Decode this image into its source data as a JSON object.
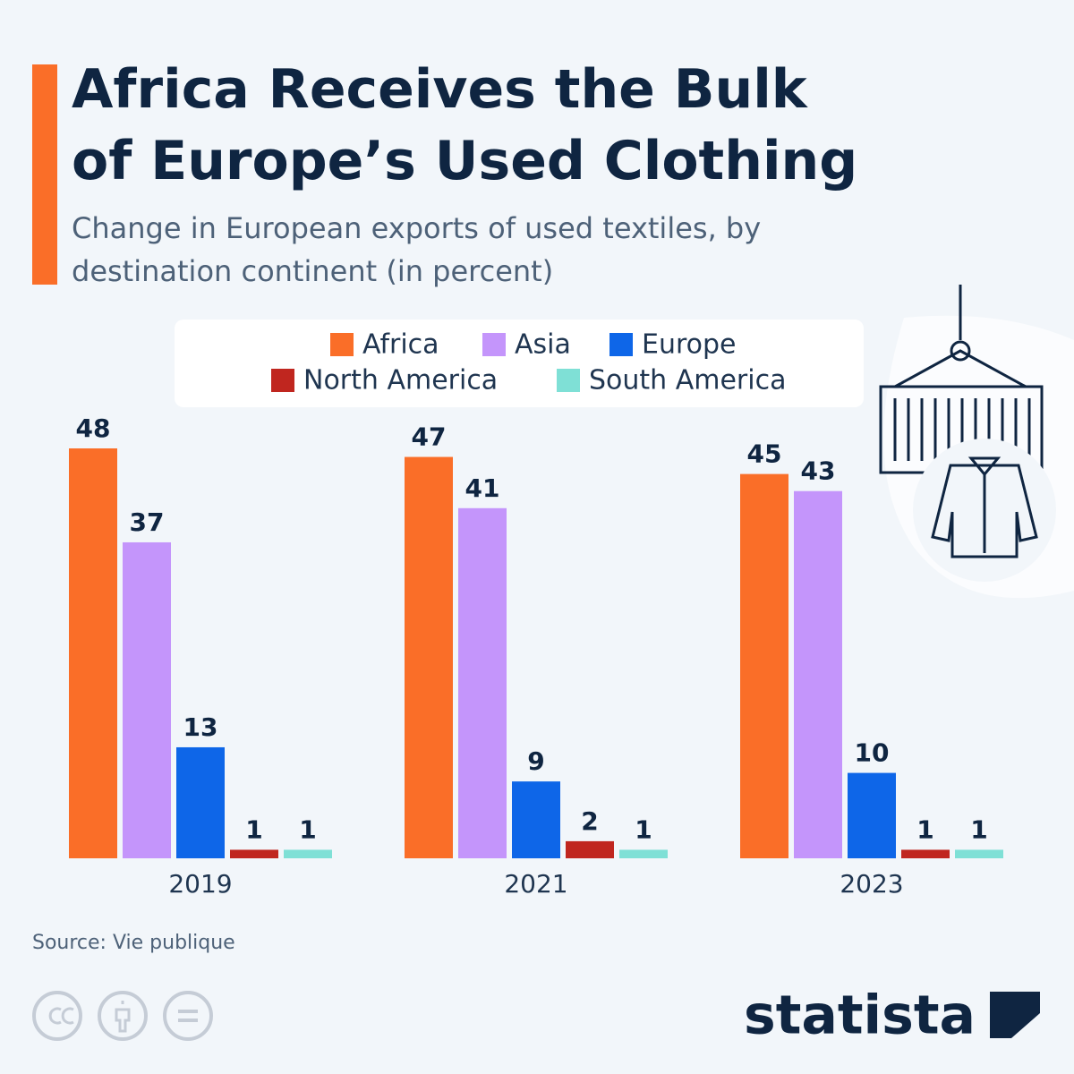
{
  "chart_data": {
    "type": "bar",
    "title": "Africa Receives the Bulk of Europe’s Used Clothing",
    "subtitle": "Change in European exports of used textiles, by destination continent (in percent)",
    "categories": [
      "2019",
      "2021",
      "2023"
    ],
    "series": [
      {
        "name": "Africa",
        "color": "#fa6e28",
        "values": [
          48,
          47,
          45
        ]
      },
      {
        "name": "Asia",
        "color": "#c495fb",
        "values": [
          37,
          41,
          43
        ]
      },
      {
        "name": "Europe",
        "color": "#0e66e8",
        "values": [
          13,
          9,
          10
        ]
      },
      {
        "name": "North America",
        "color": "#c0261f",
        "values": [
          1,
          2,
          1
        ]
      },
      {
        "name": "South America",
        "color": "#7fe0d6",
        "values": [
          1,
          1,
          1
        ]
      }
    ],
    "source": "Source: Vie publique",
    "brand": "statista"
  }
}
